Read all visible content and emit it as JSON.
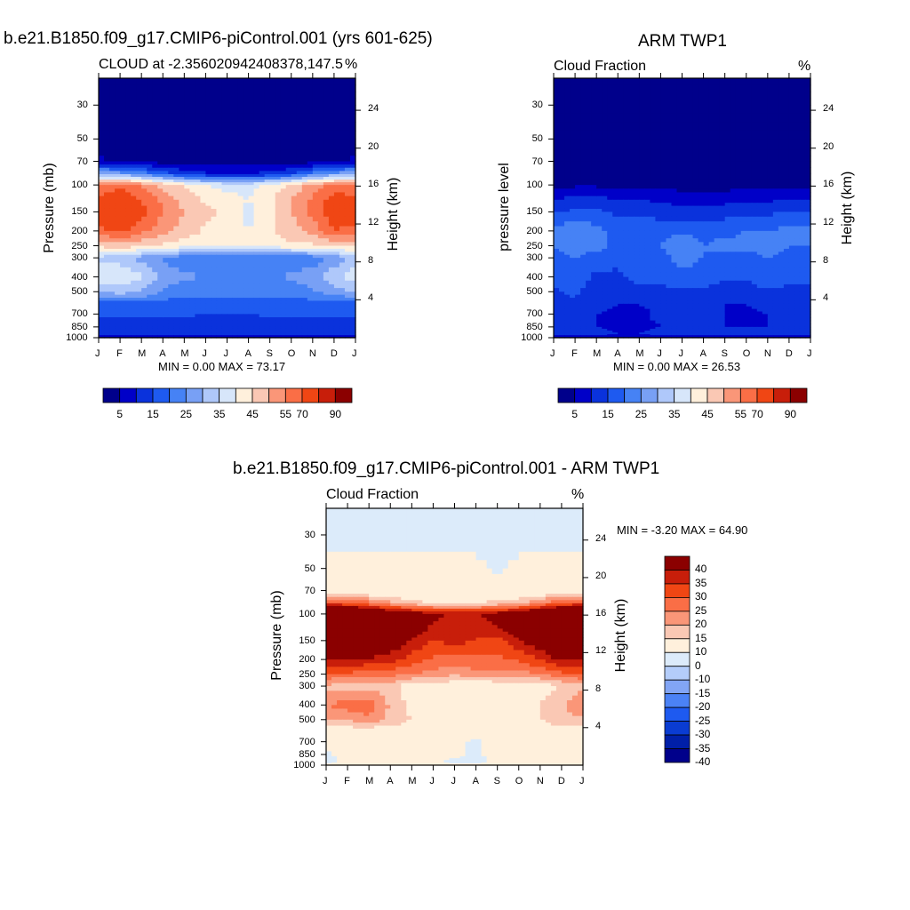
{
  "figure_title": "b.e21.B1850.f09_g17.CMIP6-piControl.001 (yrs 601-625)",
  "colors": {
    "cf_scale": [
      "#00008b",
      "#0000c8",
      "#0a32dc",
      "#1e5af0",
      "#4682f5",
      "#78a0f5",
      "#afc8fa",
      "#d7e6fa",
      "#fff0dc",
      "#fac8b4",
      "#fa9678",
      "#fa6e46",
      "#f04614",
      "#c81e0a",
      "#8b0000"
    ],
    "diff_scale": [
      "#00008b",
      "#001fa8",
      "#0a3cd2",
      "#1e5af0",
      "#4b82f5",
      "#82a5f5",
      "#b4cdfa",
      "#dcebfa",
      "#fff0dc",
      "#fac8b4",
      "#fa9678",
      "#fa6e46",
      "#f04614",
      "#c81e0a",
      "#8b0000"
    ]
  },
  "panels": [
    {
      "id": "model",
      "title": "",
      "left_label": "CLOUD at -2.356020942408378,147.5",
      "right_label": "%",
      "ylabel": "Pressure (mb)",
      "ylabel_right": "Height (km)",
      "stats": "MIN =   0.00 MAX =  73.17",
      "colorbar_labels": [
        "5",
        "15",
        "25",
        "35",
        "45",
        "55",
        "70",
        "90"
      ]
    },
    {
      "id": "obs",
      "title": "ARM TWP1",
      "left_label": "Cloud Fraction",
      "right_label": "%",
      "ylabel": "pressure level",
      "ylabel_right": "Height (km)",
      "stats": "MIN =   0.00 MAX =  26.53",
      "colorbar_labels": [
        "5",
        "15",
        "25",
        "35",
        "45",
        "55",
        "70",
        "90"
      ]
    },
    {
      "id": "diff",
      "title": "b.e21.B1850.f09_g17.CMIP6-piControl.001 - ARM TWP1",
      "left_label": "Cloud Fraction",
      "right_label": "%",
      "ylabel": "Pressure (mb)",
      "ylabel_right": "Height (km)",
      "stats": "MIN =  -3.20 MAX =  64.90",
      "colorbar_labels": [
        "40",
        "35",
        "30",
        "25",
        "20",
        "15",
        "10",
        "0",
        "-10",
        "-15",
        "-20",
        "-25",
        "-30",
        "-35",
        "-40"
      ]
    }
  ],
  "chart_data": [
    {
      "type": "heatmap",
      "title": "",
      "subtitle": "CLOUD at -2.356020942408378,147.5",
      "units": "%",
      "xlabel": "",
      "ylabel": "Pressure (mb)",
      "ylabel_right": "Height (km)",
      "x": [
        "J",
        "F",
        "M",
        "A",
        "M",
        "J",
        "J",
        "A",
        "S",
        "O",
        "N",
        "D",
        "J"
      ],
      "y_ticks": [
        30,
        50,
        70,
        100,
        150,
        200,
        250,
        300,
        400,
        500,
        700,
        850,
        1000
      ],
      "y_right_ticks": [
        24,
        20,
        16,
        12,
        8,
        4
      ],
      "ylim": [
        1000,
        20
      ],
      "y_scale": "log",
      "levels": [
        5,
        10,
        15,
        20,
        25,
        30,
        35,
        40,
        45,
        50,
        55,
        60,
        70,
        80,
        90
      ],
      "rows_pressure": [
        20,
        30,
        50,
        70,
        85,
        100,
        125,
        150,
        200,
        250,
        300,
        400,
        500,
        600,
        700,
        850,
        950,
        1000
      ],
      "values": [
        [
          2,
          2,
          2,
          2,
          2,
          2,
          2,
          2,
          2,
          2,
          2,
          2,
          2
        ],
        [
          2,
          2,
          2,
          2,
          2,
          2,
          2,
          2,
          2,
          2,
          2,
          2,
          2
        ],
        [
          2,
          2,
          2,
          2,
          2,
          2,
          2,
          2,
          2,
          2,
          2,
          2,
          2
        ],
        [
          6,
          4,
          3,
          3,
          2,
          2,
          2,
          2,
          2,
          2,
          3,
          4,
          6
        ],
        [
          30,
          28,
          24,
          18,
          14,
          11,
          10,
          10,
          12,
          16,
          22,
          27,
          30
        ],
        [
          55,
          58,
          54,
          48,
          44,
          40,
          38,
          38,
          42,
          46,
          52,
          56,
          55
        ],
        [
          62,
          66,
          60,
          54,
          48,
          44,
          42,
          40,
          44,
          50,
          56,
          63,
          62
        ],
        [
          63,
          68,
          62,
          55,
          50,
          46,
          44,
          38,
          44,
          50,
          57,
          64,
          63
        ],
        [
          58,
          62,
          56,
          52,
          48,
          44,
          42,
          40,
          44,
          48,
          52,
          60,
          58
        ],
        [
          46,
          48,
          46,
          44,
          42,
          42,
          40,
          40,
          42,
          44,
          44,
          46,
          46
        ],
        [
          34,
          32,
          28,
          24,
          22,
          22,
          22,
          20,
          20,
          20,
          22,
          26,
          34
        ],
        [
          38,
          40,
          36,
          28,
          26,
          25,
          24,
          22,
          24,
          26,
          28,
          34,
          38
        ],
        [
          30,
          32,
          30,
          24,
          22,
          22,
          22,
          22,
          22,
          22,
          24,
          28,
          30
        ],
        [
          18,
          18,
          18,
          18,
          18,
          18,
          18,
          18,
          18,
          18,
          18,
          18,
          18
        ],
        [
          16,
          16,
          16,
          16,
          16,
          15,
          15,
          15,
          16,
          16,
          16,
          16,
          16
        ],
        [
          12,
          12,
          12,
          12,
          12,
          10,
          12,
          12,
          12,
          12,
          12,
          12,
          12
        ],
        [
          12,
          12,
          12,
          12,
          12,
          12,
          12,
          12,
          12,
          12,
          12,
          12,
          12
        ],
        [
          2,
          2,
          2,
          2,
          2,
          2,
          2,
          2,
          2,
          2,
          2,
          2,
          2
        ]
      ],
      "min": 0.0,
      "max": 73.17
    },
    {
      "type": "heatmap",
      "title": "ARM TWP1",
      "subtitle": "Cloud Fraction",
      "units": "%",
      "xlabel": "",
      "ylabel": "pressure level",
      "ylabel_right": "Height (km)",
      "x": [
        "J",
        "F",
        "M",
        "A",
        "M",
        "J",
        "J",
        "A",
        "S",
        "O",
        "N",
        "D",
        "J"
      ],
      "y_ticks": [
        30,
        50,
        70,
        100,
        150,
        200,
        250,
        300,
        400,
        500,
        700,
        850,
        1000
      ],
      "y_right_ticks": [
        24,
        20,
        16,
        12,
        8,
        4
      ],
      "ylim": [
        1000,
        20
      ],
      "y_scale": "log",
      "levels": [
        5,
        10,
        15,
        20,
        25,
        30,
        35,
        40,
        45,
        50,
        55,
        60,
        70,
        80,
        90
      ],
      "rows_pressure": [
        20,
        30,
        50,
        70,
        100,
        125,
        150,
        200,
        250,
        300,
        400,
        500,
        600,
        700,
        850,
        950,
        1000
      ],
      "values": [
        [
          2,
          2,
          2,
          2,
          2,
          2,
          2,
          2,
          2,
          2,
          2,
          2,
          2
        ],
        [
          2,
          2,
          2,
          2,
          2,
          2,
          2,
          2,
          2,
          2,
          2,
          2,
          2
        ],
        [
          2,
          2,
          2,
          2,
          2,
          2,
          2,
          2,
          2,
          2,
          2,
          2,
          2
        ],
        [
          2,
          2,
          2,
          2,
          2,
          2,
          2,
          2,
          2,
          2,
          2,
          2,
          2
        ],
        [
          4,
          4,
          4,
          3,
          3,
          3,
          3,
          3,
          3,
          3,
          3,
          3,
          4
        ],
        [
          10,
          12,
          12,
          10,
          10,
          9,
          8,
          8,
          8,
          9,
          9,
          10,
          10
        ],
        [
          14,
          16,
          16,
          14,
          14,
          13,
          12,
          12,
          13,
          14,
          14,
          15,
          14
        ],
        [
          22,
          24,
          22,
          18,
          18,
          18,
          19,
          18,
          18,
          20,
          20,
          22,
          22
        ],
        [
          20,
          22,
          22,
          18,
          20,
          20,
          24,
          20,
          22,
          22,
          22,
          20,
          20
        ],
        [
          18,
          20,
          18,
          16,
          18,
          18,
          22,
          20,
          18,
          18,
          20,
          18,
          18
        ],
        [
          16,
          18,
          14,
          14,
          18,
          16,
          18,
          18,
          16,
          16,
          20,
          16,
          16
        ],
        [
          14,
          16,
          12,
          10,
          12,
          14,
          14,
          14,
          12,
          12,
          14,
          14,
          14
        ],
        [
          14,
          14,
          12,
          10,
          10,
          12,
          12,
          12,
          10,
          10,
          12,
          14,
          14
        ],
        [
          14,
          12,
          10,
          8,
          8,
          12,
          12,
          14,
          10,
          8,
          10,
          12,
          14
        ],
        [
          12,
          12,
          10,
          8,
          8,
          10,
          12,
          12,
          10,
          10,
          10,
          12,
          12
        ],
        [
          12,
          12,
          12,
          10,
          10,
          12,
          12,
          12,
          12,
          12,
          12,
          12,
          12
        ],
        [
          2,
          2,
          2,
          2,
          2,
          2,
          2,
          2,
          2,
          2,
          2,
          2,
          2
        ]
      ],
      "min": 0.0,
      "max": 26.53
    },
    {
      "type": "heatmap",
      "title": "b.e21.B1850.f09_g17.CMIP6-piControl.001 - ARM TWP1",
      "subtitle": "Cloud Fraction",
      "units": "%",
      "xlabel": "",
      "ylabel": "Pressure (mb)",
      "ylabel_right": "Height (km)",
      "x": [
        "J",
        "F",
        "M",
        "A",
        "M",
        "J",
        "J",
        "A",
        "S",
        "O",
        "N",
        "D",
        "J"
      ],
      "y_ticks": [
        30,
        50,
        70,
        100,
        150,
        200,
        250,
        300,
        400,
        500,
        700,
        850,
        1000
      ],
      "y_right_ticks": [
        24,
        20,
        16,
        12,
        8,
        4
      ],
      "ylim": [
        1000,
        20
      ],
      "y_scale": "log",
      "levels": [
        -40,
        -35,
        -30,
        -25,
        -20,
        -15,
        -10,
        0,
        10,
        15,
        20,
        25,
        30,
        35,
        40
      ],
      "rows_pressure": [
        20,
        30,
        50,
        70,
        85,
        100,
        125,
        150,
        200,
        250,
        300,
        400,
        500,
        600,
        700,
        850,
        950,
        1000
      ],
      "values": [
        [
          -3,
          -3,
          -3,
          -3,
          -3,
          -3,
          -3,
          -3,
          -3,
          -3,
          -3,
          -3,
          -3
        ],
        [
          -3,
          -3,
          -3,
          -3,
          -3,
          -3,
          -3,
          -3,
          -3,
          -3,
          -3,
          -3,
          -3
        ],
        [
          2,
          2,
          2,
          2,
          2,
          2,
          2,
          2,
          -1,
          2,
          2,
          2,
          2
        ],
        [
          5,
          4,
          3,
          3,
          2,
          2,
          2,
          2,
          2,
          2,
          3,
          4,
          5
        ],
        [
          28,
          26,
          22,
          16,
          12,
          10,
          10,
          10,
          12,
          14,
          20,
          26,
          28
        ],
        [
          52,
          55,
          50,
          44,
          40,
          36,
          34,
          34,
          38,
          42,
          48,
          52,
          52
        ],
        [
          50,
          54,
          50,
          44,
          38,
          34,
          32,
          30,
          34,
          40,
          46,
          52,
          50
        ],
        [
          46,
          50,
          46,
          40,
          34,
          30,
          32,
          30,
          28,
          34,
          40,
          48,
          46
        ],
        [
          34,
          36,
          34,
          32,
          28,
          24,
          22,
          24,
          24,
          26,
          30,
          36,
          34
        ],
        [
          24,
          24,
          22,
          22,
          20,
          18,
          16,
          18,
          18,
          18,
          20,
          24,
          24
        ],
        [
          14,
          12,
          12,
          12,
          6,
          6,
          6,
          2,
          6,
          6,
          6,
          10,
          14
        ],
        [
          20,
          22,
          24,
          14,
          8,
          8,
          6,
          6,
          8,
          8,
          10,
          14,
          20
        ],
        [
          14,
          16,
          18,
          14,
          10,
          8,
          6,
          8,
          10,
          8,
          10,
          14,
          14
        ],
        [
          6,
          6,
          6,
          6,
          6,
          6,
          6,
          6,
          6,
          6,
          6,
          6,
          6
        ],
        [
          4,
          4,
          4,
          4,
          4,
          4,
          2,
          -2,
          4,
          4,
          4,
          4,
          4
        ],
        [
          -2,
          4,
          4,
          4,
          4,
          4,
          2,
          -2,
          4,
          4,
          4,
          4,
          4
        ],
        [
          -2,
          2,
          2,
          2,
          2,
          2,
          -2,
          -2,
          2,
          2,
          2,
          2,
          2
        ],
        [
          2,
          2,
          2,
          2,
          2,
          2,
          2,
          2,
          2,
          2,
          2,
          2,
          2
        ]
      ],
      "min": -3.2,
      "max": 64.9
    }
  ]
}
